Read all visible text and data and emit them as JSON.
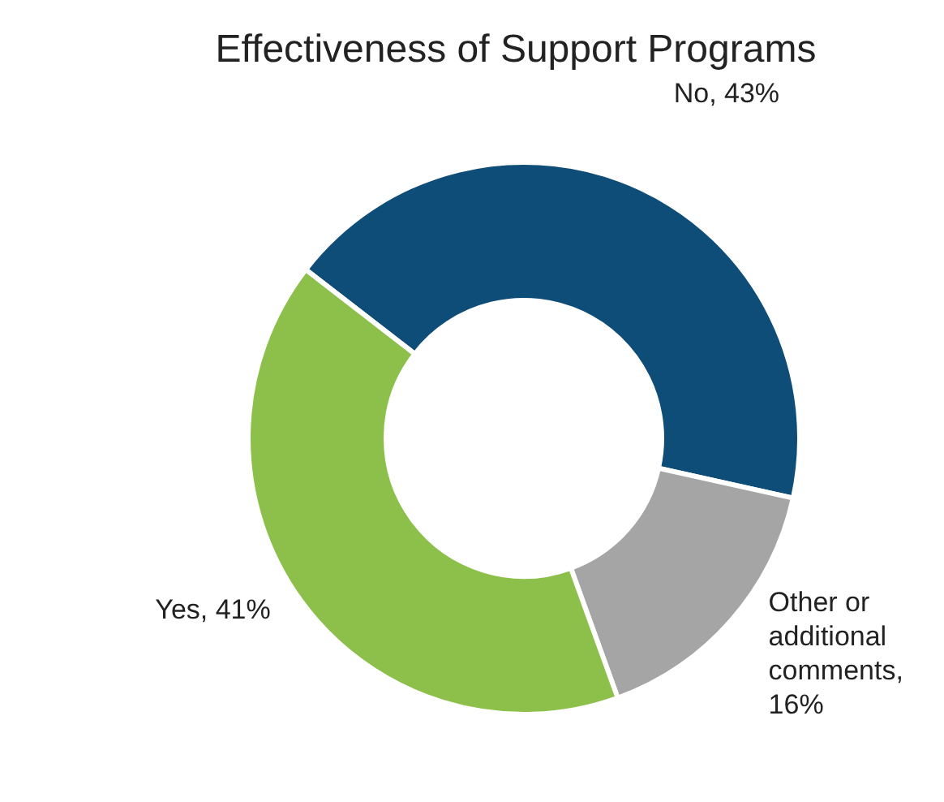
{
  "chart_data": {
    "type": "donut",
    "title": "Effectiveness of Support Programs",
    "categories": [
      "No, 43%",
      "Other or additional comments, 16%",
      "Yes, 41%"
    ],
    "values": [
      43,
      16,
      41
    ],
    "colors": [
      "#0e4d78",
      "#a5a5a5",
      "#8cc04b"
    ]
  }
}
